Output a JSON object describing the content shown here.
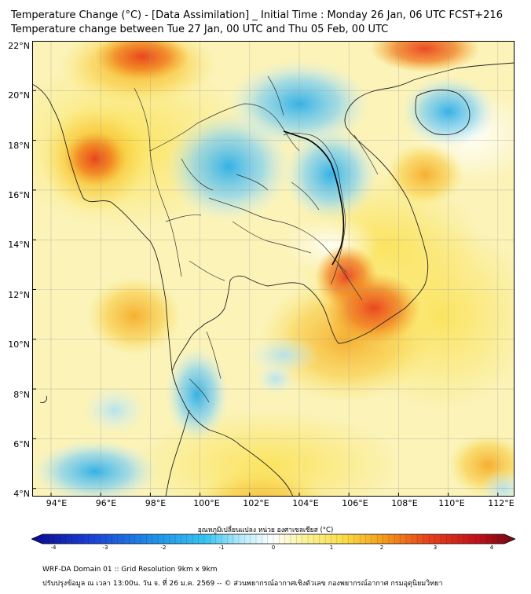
{
  "title_line1": "Temperature Change (°C) - [Data Assimilation] _ Initial Time : Monday 26 Jan, 06 UTC FCST+216",
  "title_line2": "Temperature change between Tue 27 Jan, 00 UTC and Thu 05 Feb, 00 UTC",
  "lat_labels": [
    "22°N",
    "20°N",
    "18°N",
    "16°N",
    "14°N",
    "12°N",
    "10°N",
    "8°N",
    "6°N",
    "4°N"
  ],
  "lon_labels": [
    "94°E",
    "96°E",
    "98°E",
    "100°E",
    "102°E",
    "104°E",
    "106°E",
    "108°E",
    "110°E",
    "112°E"
  ],
  "colorbar": {
    "label": "อุณหภูมิเปลี่ยนแปลง หน่วย องศาเซลเซียส (°C)",
    "ticks": [
      "-4",
      "-3",
      "-2",
      "-1",
      "0",
      "1",
      "2",
      "3",
      "4"
    ],
    "range": [
      -4,
      4
    ]
  },
  "colors": {
    "neutral": "#fbf6c4",
    "cold": "#2aaee8",
    "warm": "#f5a31a",
    "hot": "#e8401c",
    "coastline": "#222222",
    "borders": "#333333"
  },
  "footer_line1": "WRF-DA Domain 01 :: Grid Resolution 9km x 9km",
  "footer_line2": "ปรับปรุงข้อมูล ณ เวลา 13:00น. วัน จ. ที่ 26 ม.ค. 2569 -- © ส่วนพยากรณ์อากาศเชิงตัวเลข กองพยากรณ์อากาศ กรมอุตุนิยมวิทยา"
}
